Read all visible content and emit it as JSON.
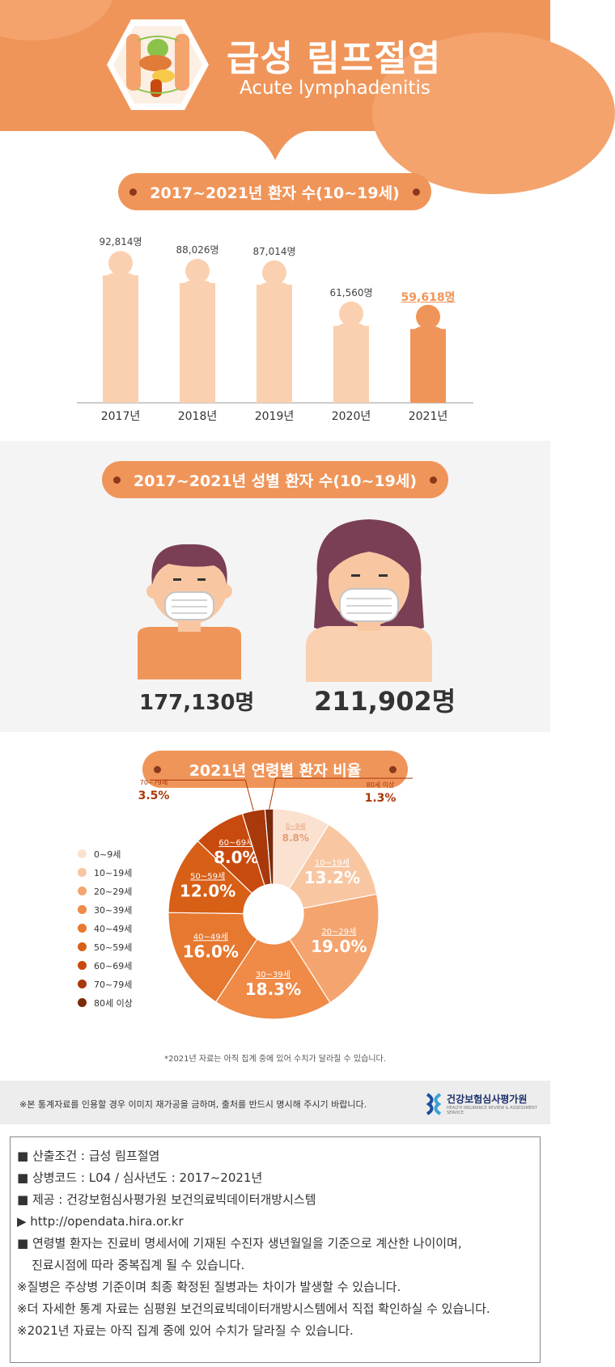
{
  "header": {
    "title_ko": "급성 림프절염",
    "title_en": "Acute lymphadenitis",
    "colors": {
      "orange": "#f0955a",
      "light_orange": "#f4a36d",
      "peach": "#fad0b0",
      "dark": "#8a3a1a"
    },
    "icon": "body-organs-icon"
  },
  "section1": {
    "title": "2017~2021년 환자 수(10~19세)",
    "value_labels": [
      "92,814명",
      "88,026명",
      "87,014명",
      "61,560명",
      "59,618명"
    ]
  },
  "section2": {
    "title": "2017~2021년 성별 환자 수(10~19세)",
    "male_value": "177,130명",
    "female_value": "211,902명",
    "male_icon": "boy-mask-icon",
    "female_icon": "girl-mask-icon"
  },
  "section3": {
    "title": "2021년 연령별 환자 비율",
    "footnote": "*2021년 자료는 아직 집계 중에 있어 수치가 달라질 수 있습니다."
  },
  "notice": {
    "text": "※본 통계자료를 인용할 경우 이미지 재가공을 금하며, 출처를 반드시 명시해 주시기 바랍니다.",
    "org_name": "건강보험심사평가원",
    "org_sub": "HEALTH INSURANCE REVIEW & ASSESSMENT SERVICE"
  },
  "info": {
    "lines": [
      "■ 산출조건 : 급성 림프절염",
      "■ 상병코드 : L04 / 심사년도 : 2017~2021년",
      "■ 제공 : 건강보험심사평가원 보건의료빅데이터개방시스템",
      "▶ http://opendata.hira.or.kr",
      "■ 연령별 환자는 진료비 명세서에 기재된 수진자 생년월일을 기준으로 계산한 나이이며,",
      "진료시점에 따라 중복집계 될 수 있습니다.",
      "※질병은 주상병 기준이며 최종 확정된 질병과는 차이가 발생할 수 있습니다.",
      "※더 자세한 통계 자료는 심평원 보건의료빅데이터개방시스템에서 직접 확인하실 수 있습니다.",
      "※2021년 자료는 아직 집계 중에 있어 수치가 달라질 수 있습니다."
    ]
  },
  "chart_data": [
    {
      "type": "bar",
      "title": "2017~2021년 환자 수(10~19세)",
      "categories": [
        "2017년",
        "2018년",
        "2019년",
        "2020년",
        "2021년"
      ],
      "values": [
        92814,
        88026,
        87014,
        61560,
        59618
      ],
      "highlight_index": 4,
      "colors": {
        "normal": "#fad0b0",
        "highlight": "#f0955a"
      }
    },
    {
      "type": "bar",
      "title": "2017~2021년 성별 환자 수(10~19세)",
      "categories": [
        "남",
        "여"
      ],
      "values": [
        177130,
        211902
      ]
    },
    {
      "type": "pie",
      "title": "2021년 연령별 환자 비율",
      "categories": [
        "0~9세",
        "10~19세",
        "20~29세",
        "30~39세",
        "40~49세",
        "50~59세",
        "60~69세",
        "70~79세",
        "80세 이상"
      ],
      "values": [
        8.8,
        13.2,
        19.0,
        18.3,
        16.0,
        12.0,
        8.0,
        3.5,
        1.3
      ],
      "value_labels": [
        "8.8%",
        "13.2%",
        "19.0%",
        "18.3%",
        "16.0%",
        "12.0%",
        "8.0%",
        "3.5%",
        "1.3%"
      ],
      "colors": [
        "#fbe1cf",
        "#f8c7a2",
        "#f4a46e",
        "#ef8a47",
        "#e6782f",
        "#d85f16",
        "#c94a0e",
        "#a9380a",
        "#7b2a0a"
      ]
    }
  ]
}
